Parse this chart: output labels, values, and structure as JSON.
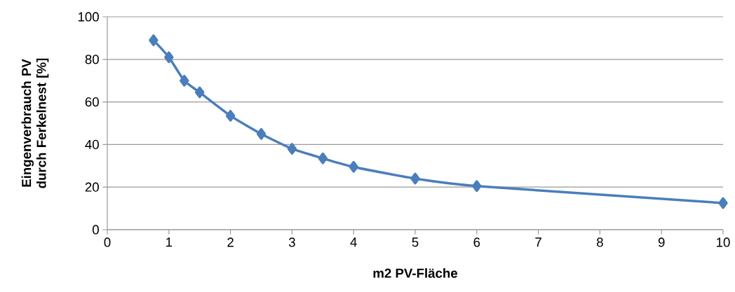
{
  "chart_data": {
    "type": "line",
    "xlabel": "m2 PV-Fläche",
    "ylabel": "Eingenverbrauch PV durch Ferkelnest [%]",
    "x": [
      0.75,
      1,
      1.25,
      1.5,
      2,
      2.5,
      3,
      3.5,
      4,
      5,
      6,
      10
    ],
    "values": [
      89,
      81,
      70,
      64.5,
      53.5,
      45,
      38,
      33.5,
      29.5,
      24,
      20.5,
      12.5
    ],
    "color": "#4a7ebb",
    "marker": "diamond",
    "line_style": "solid",
    "xlim": [
      0,
      10
    ],
    "xticks": [
      0,
      1,
      2,
      3,
      4,
      5,
      6,
      7,
      8,
      9,
      10
    ],
    "ylim": [
      0,
      100
    ],
    "yticks": [
      0,
      20,
      40,
      60,
      80,
      100
    ],
    "grid": "y"
  }
}
